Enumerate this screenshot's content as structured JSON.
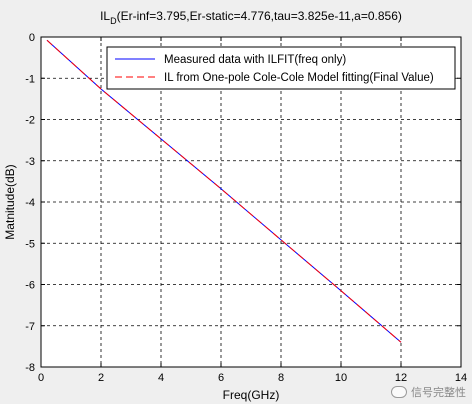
{
  "chart_data": {
    "type": "line",
    "title": "IL",
    "title_subscript": "D",
    "title_params": "(Er-inf=3.795,Er-static=4.776,tau=3.825e-11,a=0.856)",
    "xlabel": "Freq(GHz)",
    "ylabel": "Matnitude(dB)",
    "xlim": [
      0,
      14
    ],
    "ylim": [
      -8,
      0
    ],
    "xticks": [
      0,
      2,
      4,
      6,
      8,
      10,
      12,
      14
    ],
    "yticks": [
      0,
      -1,
      -2,
      -3,
      -4,
      -5,
      -6,
      -7,
      -8
    ],
    "grid": true,
    "legend_position": "top-right",
    "series": [
      {
        "name": "Measured data with ILFIT(freq only)",
        "color": "#0000ff",
        "style": "solid",
        "x": [
          0.2,
          2,
          4,
          6,
          8,
          10,
          12
        ],
        "y": [
          -0.08,
          -1.26,
          -2.47,
          -3.68,
          -4.92,
          -6.15,
          -7.4
        ]
      },
      {
        "name": "IL from One-pole Cole-Cole Model fitting(Final Value)",
        "color": "#ff0000",
        "style": "dashed",
        "x": [
          0.2,
          2,
          4,
          6,
          8,
          10,
          12
        ],
        "y": [
          -0.08,
          -1.26,
          -2.47,
          -3.68,
          -4.92,
          -6.15,
          -7.4
        ]
      }
    ]
  },
  "watermark": {
    "icon": "wechat-icon",
    "text": "信号完整性"
  }
}
